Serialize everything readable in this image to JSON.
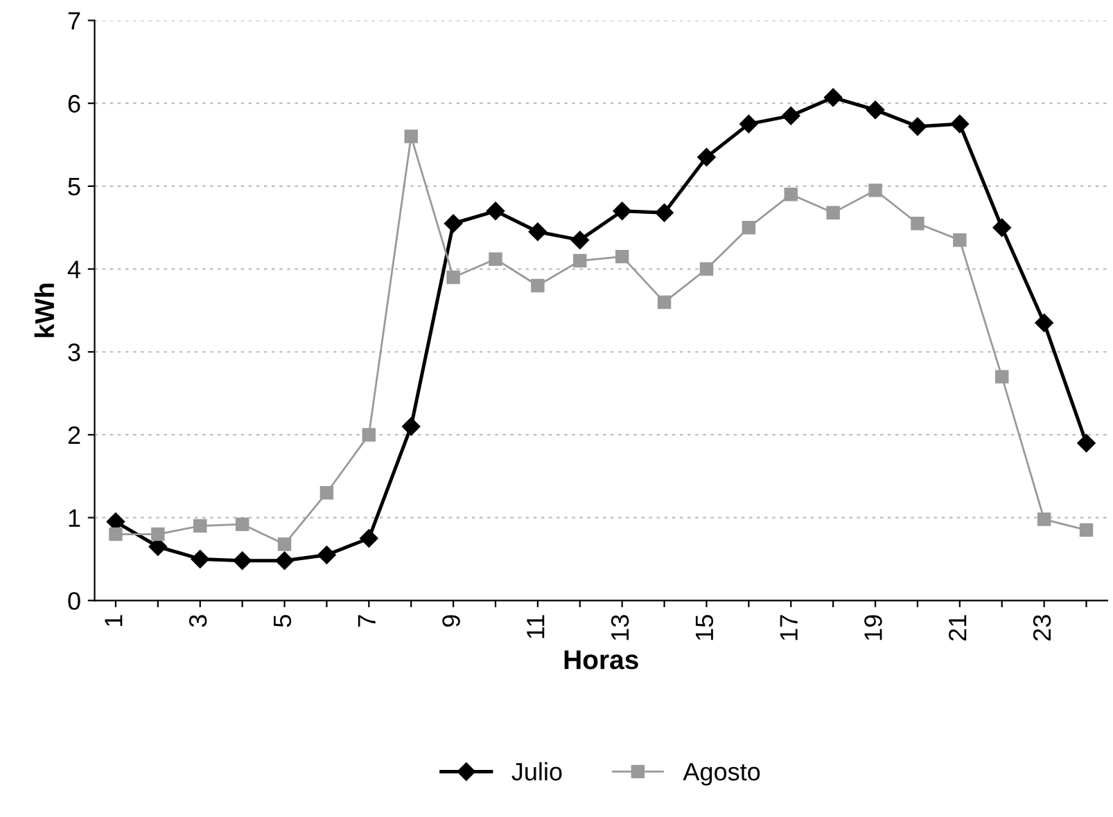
{
  "chart_data": {
    "type": "line",
    "xlabel": "Horas",
    "ylabel": "kWh",
    "categories": [
      "1",
      null,
      "3",
      null,
      "5",
      null,
      "7",
      null,
      "9",
      null,
      "11",
      null,
      "13",
      null,
      "15",
      null,
      "17",
      null,
      "19",
      null,
      "21",
      null,
      "23",
      null
    ],
    "series": [
      {
        "name": "Julio",
        "color": "#000000",
        "marker": "diamond",
        "values": [
          0.95,
          0.65,
          0.5,
          0.48,
          0.48,
          0.55,
          0.75,
          2.1,
          4.55,
          4.7,
          4.45,
          4.35,
          4.7,
          4.68,
          5.35,
          5.75,
          5.85,
          6.07,
          5.92,
          5.72,
          5.75,
          4.5,
          3.35,
          1.9
        ]
      },
      {
        "name": "Agosto",
        "color": "#999999",
        "marker": "square",
        "values": [
          0.8,
          0.8,
          0.9,
          0.92,
          0.68,
          1.3,
          2.0,
          5.6,
          3.9,
          4.12,
          3.8,
          4.1,
          4.15,
          3.6,
          4.0,
          4.5,
          4.9,
          4.68,
          4.95,
          4.55,
          4.35,
          2.7,
          0.98,
          0.85
        ]
      }
    ],
    "ylim": [
      0,
      7
    ],
    "yticks": [
      0,
      1,
      2,
      3,
      4,
      5,
      6,
      7
    ],
    "grid": "y",
    "legend": "bottom"
  }
}
